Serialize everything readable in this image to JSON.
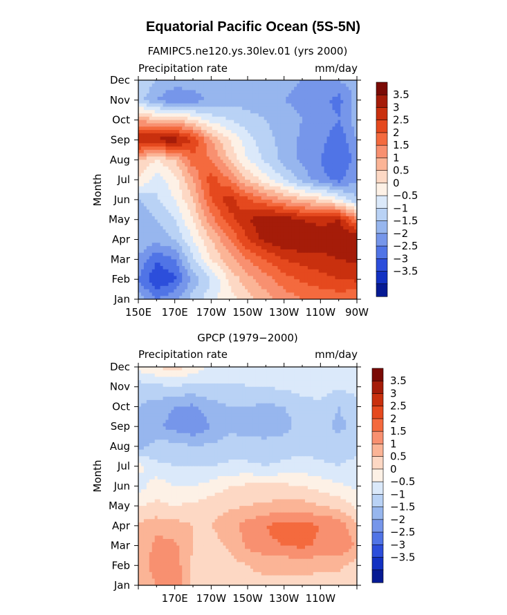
{
  "figure": {
    "title": "Equatorial Pacific Ocean (5S-5N)",
    "cb_labels": [
      "3.5",
      "3",
      "2.5",
      "2",
      "1.5",
      "1",
      "0.5",
      "0",
      "−0.5",
      "−1",
      "−1.5",
      "−2",
      "−2.5",
      "−3",
      "−3.5"
    ],
    "cb_colors": [
      "#7a0a05",
      "#a51c09",
      "#c9300e",
      "#e5491e",
      "#f46a3e",
      "#f89070",
      "#fbb496",
      "#fdd8c4",
      "#fdf1e6",
      "#dbe9fa",
      "#b9d2f5",
      "#97b6ee",
      "#7696ea",
      "#5074e6",
      "#2c4edb",
      "#1231c2",
      "#061a93"
    ],
    "months": [
      "Jan",
      "Feb",
      "Mar",
      "Apr",
      "May",
      "Jun",
      "Jul",
      "Aug",
      "Sep",
      "Oct",
      "Nov",
      "Dec"
    ]
  },
  "chart_data": [
    {
      "type": "heatmap",
      "title": "FAMIPC5.ne120.ys.30lev.01 (yrs 2000)",
      "left_label": "Precipitation rate",
      "right_label": "mm/day",
      "ylabel": "Month",
      "xlabel": "",
      "x_ticks": [
        "150E",
        "170E",
        "170W",
        "150W",
        "130W",
        "110W",
        "90W"
      ],
      "y_ticks": [
        "Jan",
        "Feb",
        "Mar",
        "Apr",
        "May",
        "Jun",
        "Jul",
        "Aug",
        "Sep",
        "Oct",
        "Nov",
        "Dec"
      ],
      "xlim": [
        150,
        270
      ],
      "ylim": [
        1,
        12
      ],
      "x_lon": [
        150,
        160,
        170,
        180,
        190,
        200,
        210,
        220,
        230,
        240,
        250,
        260,
        270
      ],
      "levels": [
        -3.5,
        -3,
        -2.5,
        -2,
        -1.5,
        -1,
        -0.5,
        0,
        0.5,
        1,
        1.5,
        2,
        2.5,
        3,
        3.5
      ],
      "values": [
        [
          -1.2,
          -2.0,
          -1.6,
          -0.8,
          -0.2,
          0.3,
          0.8,
          1.3,
          1.7,
          2.0,
          2.1,
          2.2,
          2.0
        ],
        [
          -2.0,
          -3.0,
          -2.6,
          -1.3,
          -0.5,
          0.6,
          1.3,
          1.8,
          2.3,
          2.6,
          2.8,
          3.0,
          3.1
        ],
        [
          -1.6,
          -2.4,
          -2.0,
          -0.6,
          0.5,
          1.3,
          2.0,
          2.5,
          3.0,
          3.2,
          3.3,
          3.5,
          3.6
        ],
        [
          -1.0,
          -1.3,
          -1.0,
          0.0,
          1.0,
          2.0,
          3.0,
          3.7,
          4.0,
          4.0,
          3.9,
          4.0,
          4.2
        ],
        [
          -1.5,
          -1.0,
          -0.5,
          0.5,
          1.8,
          2.8,
          3.4,
          4.0,
          3.8,
          3.5,
          3.3,
          3.5,
          2.0
        ],
        [
          -1.0,
          -0.6,
          0.0,
          1.0,
          2.5,
          3.3,
          2.6,
          2.0,
          1.5,
          1.0,
          0.7,
          0.0,
          -1.0
        ],
        [
          0.5,
          -0.3,
          0.3,
          1.5,
          2.8,
          2.0,
          1.0,
          0.2,
          -0.5,
          -1.2,
          -1.8,
          -2.2,
          -1.5
        ],
        [
          1.0,
          0.5,
          1.0,
          2.3,
          2.0,
          1.0,
          0.0,
          -0.6,
          -1.2,
          -1.6,
          -2.0,
          -2.5,
          -1.8
        ],
        [
          3.6,
          3.7,
          3.8,
          3.0,
          1.5,
          0.5,
          -0.3,
          -0.8,
          -1.2,
          -1.6,
          -1.8,
          -2.4,
          -1.5
        ],
        [
          1.5,
          1.0,
          1.2,
          0.5,
          -0.2,
          -0.5,
          -0.8,
          -1.0,
          -1.3,
          -1.5,
          -1.6,
          -2.0,
          -1.2
        ],
        [
          -0.8,
          -1.5,
          -2.0,
          -1.8,
          -1.4,
          -1.2,
          -1.2,
          -1.3,
          -1.5,
          -1.6,
          -1.8,
          -2.2,
          -1.3
        ],
        [
          -0.5,
          -1.0,
          -1.2,
          -1.2,
          -1.0,
          -1.0,
          -1.2,
          -1.3,
          -1.4,
          -1.5,
          -1.5,
          -1.5,
          -1.2
        ]
      ]
    },
    {
      "type": "heatmap",
      "title": "GPCP (1979−2000)",
      "left_label": "Precipitation rate",
      "right_label": "mm/day",
      "ylabel": "Month",
      "xlabel": "",
      "x_ticks": [
        "170E",
        "170W",
        "150W",
        "130W",
        "110W"
      ],
      "y_ticks": [
        "Jan",
        "Feb",
        "Mar",
        "Apr",
        "May",
        "Jun",
        "Jul",
        "Aug",
        "Sep",
        "Oct",
        "Nov",
        "Dec"
      ],
      "xlim": [
        150,
        270
      ],
      "ylim": [
        1,
        12
      ],
      "x_lon": [
        150,
        160,
        170,
        180,
        190,
        200,
        210,
        220,
        230,
        240,
        250,
        260,
        270
      ],
      "levels": [
        -3.5,
        -3,
        -2.5,
        -2,
        -1.5,
        -1,
        -0.5,
        0,
        0.5,
        1,
        1.5,
        2,
        2.5,
        3,
        3.5
      ],
      "values": [
        [
          1.0,
          1.5,
          2.0,
          0.8,
          0.6,
          0.8,
          0.9,
          0.9,
          0.9,
          0.8,
          0.8,
          0.8,
          0.5
        ],
        [
          1.1,
          1.8,
          1.8,
          0.9,
          0.6,
          0.8,
          1.0,
          1.1,
          1.1,
          1.2,
          1.1,
          1.1,
          0.8
        ],
        [
          1.0,
          1.7,
          1.6,
          1.0,
          0.8,
          1.1,
          1.6,
          1.9,
          2.0,
          2.1,
          1.9,
          2.0,
          1.4
        ],
        [
          1.1,
          1.3,
          1.2,
          1.0,
          1.0,
          1.3,
          1.7,
          2.0,
          2.2,
          2.2,
          2.0,
          1.9,
          1.0
        ],
        [
          0.5,
          0.6,
          0.5,
          0.6,
          0.8,
          0.9,
          1.0,
          1.1,
          1.2,
          1.2,
          1.0,
          0.8,
          0.4
        ],
        [
          -0.3,
          0.3,
          0.0,
          0.0,
          0.2,
          0.5,
          0.6,
          0.6,
          0.6,
          0.5,
          0.3,
          0.1,
          -0.1
        ],
        [
          0.2,
          -0.4,
          -0.5,
          -0.5,
          -0.5,
          -0.4,
          -0.4,
          -0.5,
          -0.4,
          -0.3,
          -0.4,
          -0.5,
          -0.3
        ],
        [
          -1.2,
          -0.8,
          -0.8,
          -1.0,
          -0.9,
          -0.8,
          -0.8,
          -0.8,
          -0.7,
          -0.7,
          -0.7,
          -0.8,
          -0.7
        ],
        [
          -1.5,
          -1.4,
          -1.7,
          -1.9,
          -1.5,
          -1.1,
          -1.2,
          -1.3,
          -1.2,
          -0.8,
          -0.9,
          -1.1,
          -0.9
        ],
        [
          -1.0,
          -1.2,
          -1.5,
          -1.6,
          -1.2,
          -1.0,
          -1.0,
          -1.1,
          -1.0,
          -0.7,
          -0.6,
          -1.0,
          -0.7
        ],
        [
          -0.8,
          -0.6,
          -0.6,
          -0.6,
          -0.6,
          -0.6,
          -0.5,
          -0.5,
          -0.4,
          -0.3,
          -0.3,
          -0.4,
          -0.3
        ],
        [
          0.2,
          0.5,
          0.8,
          0.3,
          -0.1,
          -0.2,
          -0.3,
          -0.3,
          -0.4,
          -0.3,
          -0.3,
          -0.3,
          -0.2
        ]
      ]
    }
  ]
}
